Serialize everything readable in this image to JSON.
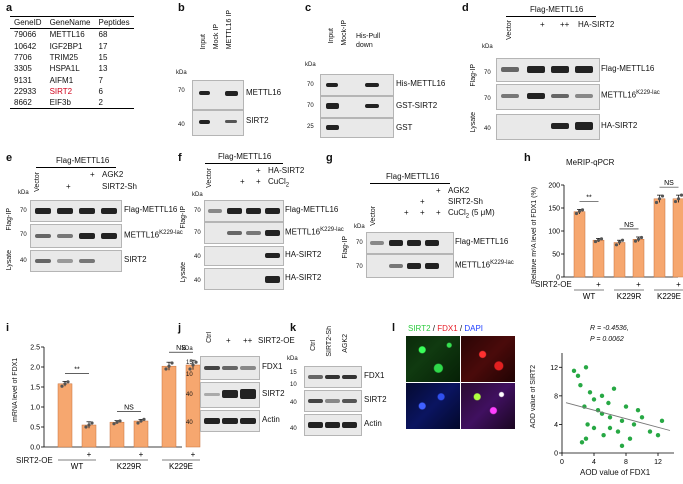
{
  "panels": [
    "a",
    "b",
    "c",
    "d",
    "e",
    "f",
    "g",
    "h",
    "i",
    "j",
    "k",
    "l"
  ],
  "table": {
    "headers": [
      "GeneID",
      "GeneName",
      "Peptides"
    ],
    "rows": [
      [
        "79066",
        "METTL16",
        "68"
      ],
      [
        "10642",
        "IGF2BP1",
        "17"
      ],
      [
        "7706",
        "TRIM25",
        "15"
      ],
      [
        "3305",
        "HSPA1L",
        "13"
      ],
      [
        "9131",
        "AIFM1",
        "7"
      ],
      [
        "22933",
        "SIRT2",
        "6"
      ],
      [
        "8662",
        "EIF3b",
        "2"
      ]
    ],
    "highlight_color": "#d0021b"
  },
  "common": {
    "kda": "kDa",
    "vector": "Vector",
    "flag_ip": "Flag-IP",
    "lysate": "Lysate",
    "plus": "+",
    "plusplus": "++"
  },
  "b": {
    "lanes": [
      "Input",
      "Mock IP",
      "METTL16 IP"
    ],
    "bands": [
      "METTL16",
      "SIRT2"
    ],
    "mw": [
      "70",
      "40"
    ]
  },
  "c": {
    "lanes": [
      "Input",
      "Mock-IP"
    ],
    "pull": "His-Pull down",
    "bands": [
      "His-METTL16",
      "GST-SIRT2",
      "GST"
    ],
    "mw": [
      "70",
      "70",
      "25"
    ]
  },
  "d": {
    "header": "Flag-METTL16",
    "treat": "HA-SIRT2",
    "bands": [
      "Flag-METTL16",
      "METTL16",
      "K229-lac",
      "HA-SIRT2"
    ],
    "mw": [
      "70",
      "70",
      "40"
    ]
  },
  "e": {
    "header": "Flag-METTL16",
    "treat1": "AGK2",
    "treat2": "SIRT2-Sh",
    "bands": [
      "Flag-METTL16",
      "METTL16",
      "K229-lac",
      "SIRT2"
    ],
    "mw": [
      "70",
      "70",
      "40"
    ]
  },
  "f": {
    "header": "Flag-METTL16",
    "treat1": "HA-SIRT2",
    "treat2": "CuCl",
    "sub2": "2",
    "bands": [
      "Flag-METTL16",
      "METTL16",
      "K229-lac",
      "HA-SIRT2",
      "HA-SIRT2"
    ],
    "mw": [
      "70",
      "70",
      "40",
      "40"
    ]
  },
  "g": {
    "header": "Flag-METTL16",
    "treat1": "AGK2",
    "treat2": "SIRT2-Sh",
    "treat3": "CuCl",
    "sub3": "2",
    "treat3b": " (5 μM)",
    "bands": [
      "Flag-METTL16",
      "METTL16",
      "K229-lac"
    ],
    "mw": [
      "70",
      "70"
    ]
  },
  "h": {
    "title": "MeRIP-qPCR",
    "ylabel": "Relative m⁶A level of FDX1 (%)",
    "treat": "SIRT2-OE",
    "groups": [
      "WT",
      "K229R",
      "K229E"
    ],
    "sig": [
      "**",
      "NS",
      "NS"
    ],
    "yticks": [
      "0",
      "50",
      "100",
      "150",
      "200"
    ]
  },
  "i": {
    "ylabel": "mRNA level of FDX1",
    "treat": "SIRT2-OE",
    "groups": [
      "WT",
      "K229R",
      "K229E"
    ],
    "sig": [
      "**",
      "NS",
      "NS"
    ],
    "yticks": [
      "0.0",
      "0.5",
      "1.0",
      "1.5",
      "2.0",
      "2.5"
    ]
  },
  "j": {
    "lanes": [
      "Ctrl",
      "+",
      "++"
    ],
    "treat": "SIRT2-OE",
    "bands": [
      "FDX1",
      "SIRT2",
      "Actin"
    ],
    "mw": [
      "15",
      "10",
      "40",
      "40"
    ]
  },
  "k": {
    "lanes": [
      "Ctrl",
      "SIRT2-Sh",
      "AGK2"
    ],
    "bands": [
      "FDX1",
      "SIRT2",
      "Actin"
    ],
    "mw": [
      "15",
      "10",
      "40",
      "40"
    ]
  },
  "l": {
    "legend_parts": [
      "SIRT2",
      "FDX1",
      "DAPI"
    ],
    "legend_sep": " / ",
    "colors": {
      "sirt2": "#2ecc40",
      "fdx1": "#e8202a",
      "dapi": "#1f3fff"
    },
    "stat_r": "R = -0.4536,",
    "stat_p": "P = 0.0062",
    "ylabel": "AOD value of SIRT2",
    "xlabel": "AOD value of FDX1",
    "xticks": [
      "0",
      "4",
      "8",
      "12"
    ],
    "yticks": [
      "0",
      "4",
      "8",
      "12"
    ]
  },
  "chart_data": [
    {
      "type": "bar",
      "title": "MeRIP-qPCR",
      "ylabel": "Relative m⁶A level of FDX1 (%)",
      "ylim": [
        0,
        200
      ],
      "categories": [
        "WT −",
        "WT +",
        "K229R −",
        "K229R +",
        "K229E −",
        "K229E +"
      ],
      "values": [
        142,
        80,
        75,
        82,
        170,
        170
      ],
      "points": [
        [
          138,
          143,
          146
        ],
        [
          77,
          80,
          83
        ],
        [
          70,
          76,
          80
        ],
        [
          78,
          82,
          86
        ],
        [
          162,
          170,
          176
        ],
        [
          164,
          170,
          178
        ]
      ],
      "errors": [
        5,
        4,
        5,
        5,
        8,
        8
      ]
    },
    {
      "type": "bar",
      "title": "",
      "ylabel": "mRNA level of FDX1",
      "ylim": [
        0,
        2.5
      ],
      "categories": [
        "WT −",
        "WT +",
        "K229R −",
        "K229R +",
        "K229E −",
        "K229E +"
      ],
      "values": [
        1.58,
        0.55,
        0.62,
        0.65,
        2.02,
        2.05
      ],
      "points": [
        [
          1.52,
          1.58,
          1.63
        ],
        [
          0.5,
          0.55,
          0.6
        ],
        [
          0.58,
          0.62,
          0.65
        ],
        [
          0.6,
          0.65,
          0.69
        ],
        [
          1.95,
          2.02,
          2.1
        ],
        [
          1.95,
          2.05,
          2.12
        ]
      ],
      "errors": [
        0.06,
        0.08,
        0.04,
        0.04,
        0.1,
        0.12
      ]
    },
    {
      "type": "scatter",
      "title": "",
      "xlabel": "AOD value of FDX1",
      "ylabel": "AOD value of SIRT2",
      "xlim": [
        0,
        14
      ],
      "ylim": [
        0,
        14
      ],
      "x": [
        1.5,
        2,
        2.3,
        2.8,
        3,
        3.2,
        3.5,
        4,
        4,
        4.5,
        5,
        5.2,
        5.8,
        6,
        6.5,
        7,
        7.5,
        8,
        8.5,
        9,
        10,
        11,
        12,
        12.5,
        3,
        2.5,
        6,
        7.5,
        9.5,
        5
      ],
      "y": [
        11.5,
        10.8,
        9.5,
        6.5,
        12,
        4,
        8.5,
        7.5,
        3.5,
        6,
        5.5,
        2.5,
        7,
        5,
        9,
        3,
        4.5,
        6.5,
        2,
        4,
        5,
        3,
        2.5,
        4.5,
        2,
        1.5,
        3.5,
        1,
        6,
        8
      ],
      "fit": {
        "slope": -0.3,
        "intercept": 7.2
      }
    }
  ]
}
